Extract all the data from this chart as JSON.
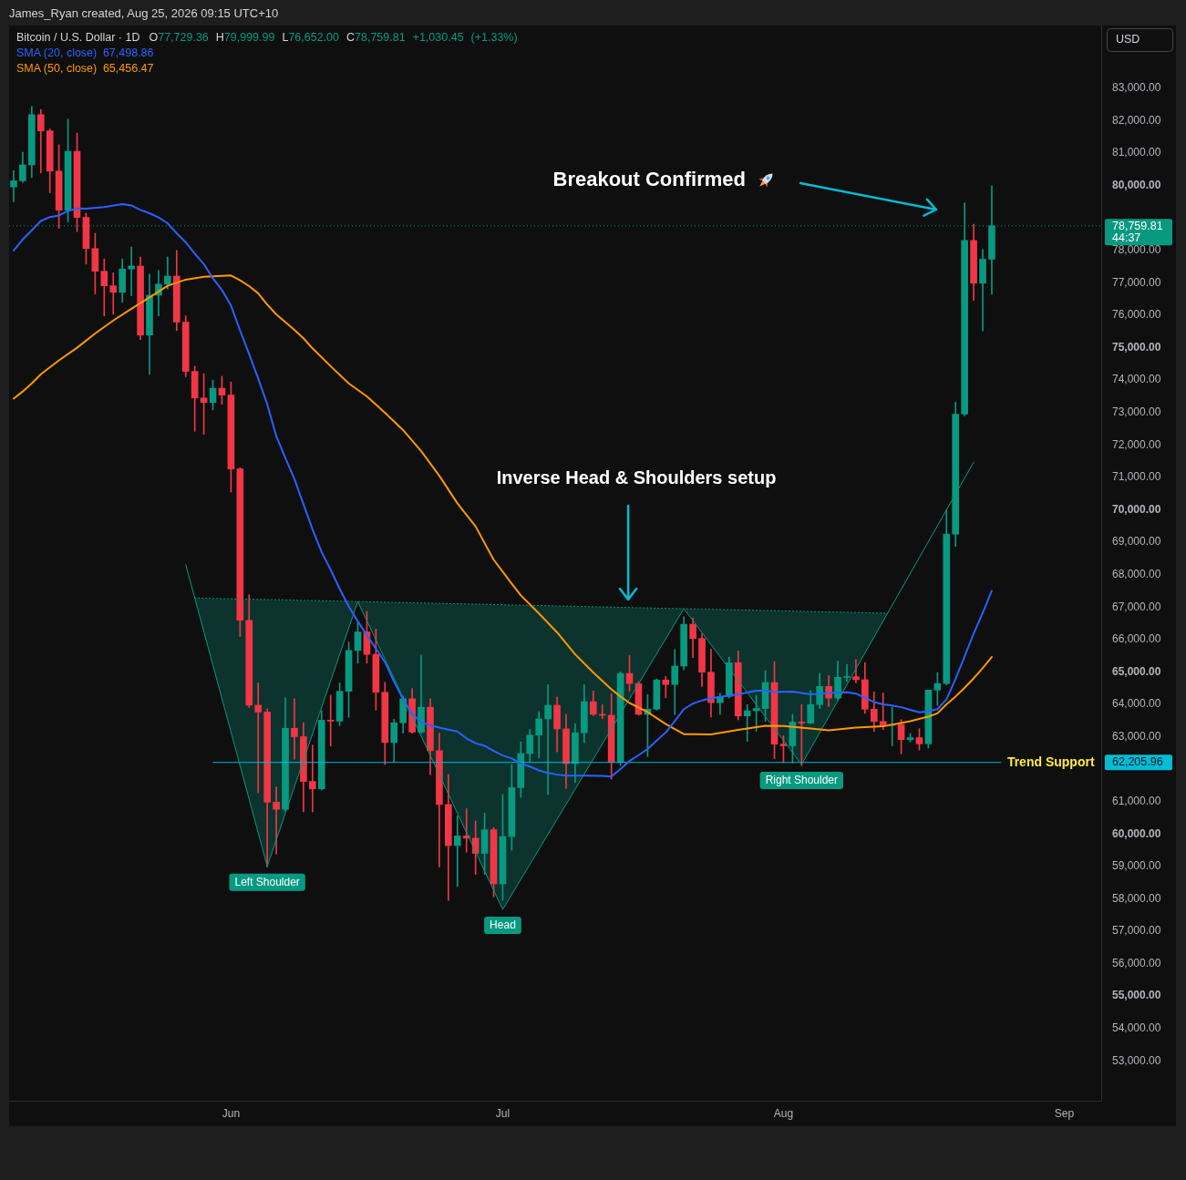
{
  "chart_data": {
    "type": "candlestick",
    "title": "Bitcoin / U.S. Dollar · 1D",
    "x": [
      "2026-05-08",
      "2026-05-09",
      "2026-05-10",
      "2026-05-11",
      "2026-05-12",
      "2026-05-13",
      "2026-05-14",
      "2026-05-15",
      "2026-05-16",
      "2026-05-17",
      "2026-05-18",
      "2026-05-19",
      "2026-05-20",
      "2026-05-21",
      "2026-05-22",
      "2026-05-23",
      "2026-05-24",
      "2026-05-25",
      "2026-05-26",
      "2026-05-27",
      "2026-05-28",
      "2026-05-29",
      "2026-05-30",
      "2026-05-31",
      "2026-06-01",
      "2026-06-02",
      "2026-06-03",
      "2026-06-04",
      "2026-06-05",
      "2026-06-06",
      "2026-06-07",
      "2026-06-08",
      "2026-06-09",
      "2026-06-10",
      "2026-06-11",
      "2026-06-12",
      "2026-06-13",
      "2026-06-14",
      "2026-06-15",
      "2026-06-16",
      "2026-06-17",
      "2026-06-18",
      "2026-06-19",
      "2026-06-20",
      "2026-06-21",
      "2026-06-22",
      "2026-06-23",
      "2026-06-24",
      "2026-06-25",
      "2026-06-26",
      "2026-06-27",
      "2026-06-28",
      "2026-06-29",
      "2026-06-30",
      "2026-07-01",
      "2026-07-02",
      "2026-07-03",
      "2026-07-04",
      "2026-07-05",
      "2026-07-06",
      "2026-07-07",
      "2026-07-08",
      "2026-07-09",
      "2026-07-10",
      "2026-07-11",
      "2026-07-12",
      "2026-07-13",
      "2026-07-14",
      "2026-07-15",
      "2026-07-16",
      "2026-07-17",
      "2026-07-18",
      "2026-07-19",
      "2026-07-20",
      "2026-07-21",
      "2026-07-22",
      "2026-07-23",
      "2026-07-24",
      "2026-07-25",
      "2026-07-26",
      "2026-07-27",
      "2026-07-28",
      "2026-07-29",
      "2026-07-30",
      "2026-07-31",
      "2026-08-01",
      "2026-08-02",
      "2026-08-03",
      "2026-08-04",
      "2026-08-05",
      "2026-08-06",
      "2026-08-07",
      "2026-08-08",
      "2026-08-09",
      "2026-08-10",
      "2026-08-11",
      "2026-08-12",
      "2026-08-13",
      "2026-08-14",
      "2026-08-15",
      "2026-08-16",
      "2026-08-17",
      "2026-08-18",
      "2026-08-19",
      "2026-08-20",
      "2026-08-21",
      "2026-08-22",
      "2026-08-23",
      "2026-08-24"
    ],
    "ohlc": [
      [
        79960,
        80460,
        79500,
        80150
      ],
      [
        80150,
        81030,
        80090,
        80640
      ],
      [
        80640,
        82440,
        80250,
        82190
      ],
      [
        82190,
        82350,
        80390,
        81690
      ],
      [
        81690,
        81750,
        79780,
        80450
      ],
      [
        80450,
        81260,
        78680,
        79240
      ],
      [
        79240,
        82050,
        78880,
        81060
      ],
      [
        81060,
        81620,
        78580,
        79020
      ],
      [
        79020,
        79150,
        77580,
        78060
      ],
      [
        78060,
        78530,
        76660,
        77360
      ],
      [
        77360,
        77740,
        75980,
        76910
      ],
      [
        76910,
        77310,
        76030,
        76710
      ],
      [
        76710,
        77740,
        76400,
        77430
      ],
      [
        77430,
        78110,
        76600,
        77520
      ],
      [
        77520,
        77800,
        75250,
        75390
      ],
      [
        75390,
        77270,
        74180,
        76620
      ],
      [
        76620,
        77380,
        75980,
        76960
      ],
      [
        76960,
        77800,
        76810,
        77210
      ],
      [
        77210,
        78000,
        75530,
        75790
      ],
      [
        75790,
        75980,
        74110,
        74270
      ],
      [
        74270,
        74430,
        72420,
        73450
      ],
      [
        73450,
        74200,
        72330,
        73310
      ],
      [
        73310,
        74000,
        73080,
        73750
      ],
      [
        73750,
        74120,
        73260,
        73540
      ],
      [
        73540,
        73940,
        70550,
        71260
      ],
      [
        71260,
        71300,
        66090,
        66590
      ],
      [
        66590,
        67380,
        63900,
        63970
      ],
      [
        63970,
        64660,
        61270,
        63760
      ],
      [
        63760,
        63860,
        58980,
        60980
      ],
      [
        60980,
        61450,
        59380,
        60760
      ],
      [
        60760,
        64200,
        60700,
        63260
      ],
      [
        63260,
        64170,
        62310,
        63000
      ],
      [
        63000,
        63430,
        60680,
        61620
      ],
      [
        61620,
        62740,
        60680,
        61390
      ],
      [
        61390,
        63800,
        61350,
        63510
      ],
      [
        63510,
        64280,
        62710,
        63480
      ],
      [
        63480,
        64660,
        63340,
        64400
      ],
      [
        64400,
        65920,
        63600,
        65660
      ],
      [
        65660,
        66550,
        65270,
        66230
      ],
      [
        66230,
        66870,
        65270,
        65540
      ],
      [
        65540,
        66320,
        63820,
        64370
      ],
      [
        64370,
        64680,
        62140,
        62820
      ],
      [
        62820,
        63540,
        62220,
        63430
      ],
      [
        63430,
        64260,
        63110,
        64170
      ],
      [
        64170,
        64490,
        63110,
        63140
      ],
      [
        63140,
        65520,
        63110,
        63910
      ],
      [
        63910,
        64170,
        61830,
        62570
      ],
      [
        62570,
        63110,
        58980,
        60910
      ],
      [
        60910,
        61830,
        57950,
        59640
      ],
      [
        59640,
        60560,
        58380,
        59940
      ],
      [
        59940,
        60780,
        59440,
        59870
      ],
      [
        59870,
        60400,
        58750,
        59400
      ],
      [
        59400,
        60640,
        58750,
        60130
      ],
      [
        60130,
        60200,
        58060,
        58460
      ],
      [
        58460,
        61220,
        57950,
        59920
      ],
      [
        59920,
        62140,
        59500,
        61430
      ],
      [
        61430,
        62840,
        61130,
        62480
      ],
      [
        62480,
        63220,
        62230,
        63050
      ],
      [
        63050,
        63780,
        62350,
        63550
      ],
      [
        63550,
        64610,
        61220,
        63970
      ],
      [
        63970,
        64220,
        62530,
        63240
      ],
      [
        63240,
        63690,
        61410,
        62170
      ],
      [
        62170,
        63400,
        61580,
        63120
      ],
      [
        63120,
        64610,
        62810,
        64080
      ],
      [
        64080,
        64410,
        63650,
        63690
      ],
      [
        63690,
        63990,
        63560,
        63660
      ],
      [
        63660,
        64330,
        61690,
        62210
      ],
      [
        62210,
        65000,
        62110,
        64950
      ],
      [
        64950,
        65510,
        64410,
        64640
      ],
      [
        64640,
        64700,
        63660,
        63690
      ],
      [
        63690,
        64300,
        62390,
        63850
      ],
      [
        63850,
        64780,
        63820,
        64750
      ],
      [
        64750,
        64860,
        64200,
        64610
      ],
      [
        64610,
        65690,
        63680,
        65180
      ],
      [
        65180,
        66700,
        65060,
        66470
      ],
      [
        66470,
        66660,
        65440,
        66030
      ],
      [
        66030,
        66190,
        64550,
        64990
      ],
      [
        64990,
        65700,
        63610,
        64050
      ],
      [
        64050,
        64340,
        63690,
        64240
      ],
      [
        64240,
        65460,
        64200,
        65280
      ],
      [
        65280,
        65650,
        63520,
        63640
      ],
      [
        63640,
        63990,
        62860,
        63800
      ],
      [
        63800,
        64270,
        63170,
        63870
      ],
      [
        63870,
        65040,
        63470,
        64670
      ],
      [
        64670,
        65320,
        62320,
        62770
      ],
      [
        62770,
        63030,
        62200,
        62720
      ],
      [
        62720,
        63690,
        62190,
        63450
      ],
      [
        63450,
        63990,
        62110,
        63420
      ],
      [
        63420,
        64430,
        63400,
        63990
      ],
      [
        63990,
        64950,
        63870,
        64550
      ],
      [
        64550,
        64880,
        63930,
        64190
      ],
      [
        64190,
        65330,
        64150,
        64830
      ],
      [
        64830,
        65230,
        64700,
        64850
      ],
      [
        64850,
        65380,
        64660,
        64760
      ],
      [
        64760,
        65290,
        63720,
        63850
      ],
      [
        63850,
        64380,
        63160,
        63470
      ],
      [
        63470,
        64350,
        63220,
        63350
      ],
      [
        63350,
        63910,
        62720,
        63380
      ],
      [
        63380,
        63530,
        62470,
        62910
      ],
      [
        62910,
        63100,
        62840,
        62970
      ],
      [
        62970,
        63250,
        62590,
        62780
      ],
      [
        62780,
        64440,
        62650,
        64440
      ],
      [
        64440,
        64980,
        63970,
        64640
      ],
      [
        64640,
        70000,
        64600,
        69250
      ],
      [
        69250,
        73320,
        68870,
        72950
      ],
      [
        72950,
        79470,
        72900,
        78310
      ],
      [
        78310,
        78810,
        76460,
        76990
      ],
      [
        76990,
        78030,
        75520,
        77729.36
      ],
      [
        77729.36,
        79999.99,
        76652.0,
        78759.81
      ]
    ],
    "colors": [
      "#089981",
      "#089981",
      "#089981",
      "#f23645",
      "#f23645",
      "#f23645",
      "#089981",
      "#f23645",
      "#f23645",
      "#f23645",
      "#f23645",
      "#f23645",
      "#089981",
      "#089981",
      "#f23645",
      "#089981",
      "#089981",
      "#089981",
      "#f23645",
      "#f23645",
      "#f23645",
      "#f23645",
      "#089981",
      "#f23645",
      "#f23645",
      "#f23645",
      "#f23645",
      "#f23645",
      "#f23645",
      "#f23645",
      "#089981",
      "#f23645",
      "#f23645",
      "#f23645",
      "#089981",
      "#f23645",
      "#089981",
      "#089981",
      "#089981",
      "#f23645",
      "#f23645",
      "#f23645",
      "#089981",
      "#089981",
      "#f23645",
      "#089981",
      "#f23645",
      "#f23645",
      "#f23645",
      "#089981",
      "#f23645",
      "#f23645",
      "#089981",
      "#f23645",
      "#089981",
      "#089981",
      "#089981",
      "#089981",
      "#089981",
      "#089981",
      "#f23645",
      "#f23645",
      "#089981",
      "#089981",
      "#f23645",
      "#f23645",
      "#f23645",
      "#089981",
      "#f23645",
      "#f23645",
      "#089981",
      "#089981",
      "#f23645",
      "#089981",
      "#089981",
      "#f23645",
      "#f23645",
      "#f23645",
      "#089981",
      "#089981",
      "#f23645",
      "#089981",
      "#089981",
      "#089981",
      "#f23645",
      "#f23645",
      "#089981",
      "#f23645",
      "#089981",
      "#089981",
      "#f23645",
      "#089981",
      "#089981",
      "#f23645",
      "#f23645",
      "#f23645",
      "#f23645",
      "#089981",
      "#f23645",
      "#089981",
      "#f23645",
      "#089981",
      "#089981",
      "#089981",
      "#089981",
      "#089981",
      "#f23645",
      "#089981",
      "#089981"
    ],
    "series": [
      {
        "type": "line",
        "name": "SMA (20, close)",
        "color": "#2962ff",
        "x": [
          "2026-05-08",
          "2026-05-09",
          "2026-05-10",
          "2026-05-11",
          "2026-05-12",
          "2026-05-13",
          "2026-05-14",
          "2026-05-15",
          "2026-05-16",
          "2026-05-18",
          "2026-05-20",
          "2026-05-21",
          "2026-05-22",
          "2026-05-23",
          "2026-05-24",
          "2026-05-25",
          "2026-05-26",
          "2026-05-27",
          "2026-05-28",
          "2026-05-29",
          "2026-05-30",
          "2026-05-31",
          "2026-06-01",
          "2026-06-02",
          "2026-06-03",
          "2026-06-04",
          "2026-06-05",
          "2026-06-06",
          "2026-06-07",
          "2026-06-08",
          "2026-06-09",
          "2026-06-10",
          "2026-06-11",
          "2026-06-12",
          "2026-06-13",
          "2026-06-14",
          "2026-06-15",
          "2026-06-16",
          "2026-06-17",
          "2026-06-18",
          "2026-06-19",
          "2026-06-20",
          "2026-06-21",
          "2026-06-22",
          "2026-06-23",
          "2026-06-24",
          "2026-06-25",
          "2026-06-26",
          "2026-06-27",
          "2026-06-28",
          "2026-06-29",
          "2026-06-30",
          "2026-07-01",
          "2026-07-02",
          "2026-07-03",
          "2026-07-04",
          "2026-07-05",
          "2026-07-06",
          "2026-07-07",
          "2026-07-08",
          "2026-07-10",
          "2026-07-12",
          "2026-07-13",
          "2026-07-14",
          "2026-07-15",
          "2026-07-16",
          "2026-07-17",
          "2026-07-18",
          "2026-07-19",
          "2026-07-20",
          "2026-07-21",
          "2026-07-22",
          "2026-07-23",
          "2026-07-24",
          "2026-07-25",
          "2026-07-27",
          "2026-07-29",
          "2026-07-30",
          "2026-07-31",
          "2026-08-02",
          "2026-08-04",
          "2026-08-06",
          "2026-08-08",
          "2026-08-09",
          "2026-08-10",
          "2026-08-11",
          "2026-08-12",
          "2026-08-13",
          "2026-08-14",
          "2026-08-15",
          "2026-08-16",
          "2026-08-17",
          "2026-08-18",
          "2026-08-19",
          "2026-08-20",
          "2026-08-21",
          "2026-08-22",
          "2026-08-23",
          "2026-08-24"
        ],
        "values": [
          78000,
          78340,
          78620,
          78910,
          79030,
          79080,
          79220,
          79300,
          79290,
          79340,
          79430,
          79390,
          79250,
          79150,
          79020,
          78840,
          78530,
          78250,
          77900,
          77580,
          77140,
          76780,
          76300,
          75530,
          74810,
          74050,
          73260,
          72270,
          71600,
          70950,
          70170,
          69400,
          68700,
          68150,
          67560,
          67020,
          66560,
          66130,
          65720,
          65300,
          64700,
          64160,
          63700,
          63450,
          63350,
          63280,
          63220,
          63160,
          62950,
          62800,
          62720,
          62560,
          62420,
          62330,
          62170,
          62080,
          61960,
          61880,
          61830,
          61800,
          61800,
          61790,
          61770,
          62000,
          62250,
          62430,
          62620,
          62880,
          63130,
          63480,
          63850,
          64020,
          64120,
          64190,
          64230,
          64310,
          64420,
          64420,
          64380,
          64390,
          64310,
          64350,
          64370,
          64330,
          64200,
          64070,
          64000,
          63960,
          63910,
          63830,
          63750,
          63780,
          63850,
          64150,
          64780,
          65480,
          66180,
          66820,
          67498.86
        ]
      },
      {
        "type": "line",
        "name": "SMA (50, close)",
        "color": "#ff9800",
        "x": [
          "2026-05-08",
          "2026-05-09",
          "2026-05-10",
          "2026-05-11",
          "2026-05-13",
          "2026-05-15",
          "2026-05-17",
          "2026-05-19",
          "2026-05-21",
          "2026-05-23",
          "2026-05-25",
          "2026-05-27",
          "2026-05-29",
          "2026-06-01",
          "2026-06-02",
          "2026-06-03",
          "2026-06-04",
          "2026-06-05",
          "2026-06-06",
          "2026-06-07",
          "2026-06-08",
          "2026-06-09",
          "2026-06-10",
          "2026-06-12",
          "2026-06-14",
          "2026-06-16",
          "2026-06-18",
          "2026-06-20",
          "2026-06-22",
          "2026-06-24",
          "2026-06-26",
          "2026-06-28",
          "2026-06-30",
          "2026-07-01",
          "2026-07-02",
          "2026-07-03",
          "2026-07-05",
          "2026-07-07",
          "2026-07-09",
          "2026-07-11",
          "2026-07-13",
          "2026-07-14",
          "2026-07-15",
          "2026-07-17",
          "2026-07-19",
          "2026-07-21",
          "2026-07-24",
          "2026-07-27",
          "2026-07-30",
          "2026-08-01",
          "2026-08-04",
          "2026-08-06",
          "2026-08-09",
          "2026-08-12",
          "2026-08-15",
          "2026-08-17",
          "2026-08-18",
          "2026-08-19",
          "2026-08-20",
          "2026-08-21",
          "2026-08-22",
          "2026-08-23",
          "2026-08-24"
        ],
        "values": [
          73430,
          73650,
          73900,
          74180,
          74610,
          75000,
          75440,
          75840,
          76200,
          76550,
          76910,
          77100,
          77190,
          77230,
          77080,
          76900,
          76680,
          76330,
          76030,
          75790,
          75550,
          75290,
          74980,
          74430,
          73900,
          73500,
          72990,
          72460,
          71810,
          71050,
          70200,
          69490,
          68460,
          68090,
          67720,
          67360,
          66800,
          66220,
          65540,
          64980,
          64460,
          64240,
          64040,
          63760,
          63390,
          63080,
          63070,
          63210,
          63340,
          63330,
          63250,
          63200,
          63280,
          63320,
          63480,
          63620,
          63720,
          64000,
          64240,
          64510,
          64800,
          65120,
          65456.47
        ]
      },
      {
        "type": "line",
        "color": "#089981",
        "x": [
          "2026-05-27",
          "2026-05-28",
          "2026-06-05",
          "2026-06-15",
          "2026-07-01",
          "2026-07-21",
          "2026-08-03",
          "2026-08-12T12:00",
          "2026-08-22"
        ],
        "values": [
          68310,
          67280,
          59000,
          67170,
          57670,
          66950,
          62140,
          66810,
          71470
        ],
        "lower": [
          null,
          67280,
          59000,
          67170,
          57670,
          66950,
          62140,
          66810,
          null
        ],
        "upper": [
          null,
          67280,
          67230,
          67170,
          67070,
          66950,
          66870,
          66810,
          null
        ]
      },
      {
        "type": "line",
        "name": "Trend Support",
        "color": "#00bcd4",
        "x": [
          "2026-05-30",
          "2026-08-25"
        ],
        "values": [
          62205.96,
          62205.96
        ]
      },
      {
        "type": "line",
        "color": "#089981",
        "line_style": "dotted",
        "x": [
          "2026-05-28",
          "2026-08-12T12:00"
        ],
        "values": [
          67280,
          66810
        ]
      }
    ],
    "ref_lines": [
      {
        "axis": "y",
        "value": 78759.81,
        "label": "78,759.81",
        "color": "#089981",
        "line_style": "dotted"
      }
    ],
    "annotations": [
      "James_Ryan created, Aug 25, 2026 09:15 UTC+10",
      "O77,729.36 H79,999.99 L76,652.00 C78,759.81 +1,030.45 (+1.33%)",
      "67,498.86",
      "65,456.47",
      "USD",
      "44:37",
      "Breakout Confirmed",
      "Inverse Head & Shoulders setup",
      {
        "text": "Left Shoulder",
        "x": "2026-06-05",
        "y": 59000
      },
      {
        "text": "Head",
        "x": "2026-07-01",
        "y": 57670
      },
      {
        "text": "Right Shoulder",
        "x": "2026-08-03",
        "y": 62140
      },
      "62,205.96"
    ],
    "xlim": [
      "2026-05-07T12:00",
      "2026-09-05T02:00"
    ],
    "xticks": [
      {
        "value": "2026-06-01",
        "label": "Jun"
      },
      {
        "value": "2026-07-01",
        "label": "Jul"
      },
      {
        "value": "2026-08-01",
        "label": "Aug"
      },
      {
        "value": "2026-09-01",
        "label": "Sep"
      }
    ],
    "ylim": [
      51770,
      84940
    ],
    "yticks": [
      {
        "value": 53000,
        "label": "53,000.00"
      },
      {
        "value": 54000,
        "label": "54,000.00"
      },
      {
        "value": 55000,
        "label": "55,000.00"
      },
      {
        "value": 56000,
        "label": "56,000.00"
      },
      {
        "value": 57000,
        "label": "57,000.00"
      },
      {
        "value": 58000,
        "label": "58,000.00"
      },
      {
        "value": 59000,
        "label": "59,000.00"
      },
      {
        "value": 60000,
        "label": "60,000.00"
      },
      {
        "value": 61000,
        "label": "61,000.00"
      },
      {
        "value": 63000,
        "label": "63,000.00"
      },
      {
        "value": 64000,
        "label": "64,000.00"
      },
      {
        "value": 65000,
        "label": "65,000.00"
      },
      {
        "value": 66000,
        "label": "66,000.00"
      },
      {
        "value": 67000,
        "label": "67,000.00"
      },
      {
        "value": 68000,
        "label": "68,000.00"
      },
      {
        "value": 69000,
        "label": "69,000.00"
      },
      {
        "value": 70000,
        "label": "70,000.00"
      },
      {
        "value": 71000,
        "label": "71,000.00"
      },
      {
        "value": 72000,
        "label": "72,000.00"
      },
      {
        "value": 73000,
        "label": "73,000.00"
      },
      {
        "value": 74000,
        "label": "74,000.00"
      },
      {
        "value": 75000,
        "label": "75,000.00"
      },
      {
        "value": 76000,
        "label": "76,000.00"
      },
      {
        "value": 77000,
        "label": "77,000.00"
      },
      {
        "value": 78000,
        "label": "78,000.00"
      },
      {
        "value": 80000,
        "label": "80,000.00"
      },
      {
        "value": 81000,
        "label": "81,000.00"
      },
      {
        "value": 82000,
        "label": "82,000.00"
      },
      {
        "value": 83000,
        "label": "83,000.00"
      }
    ],
    "legend": "top left"
  }
}
